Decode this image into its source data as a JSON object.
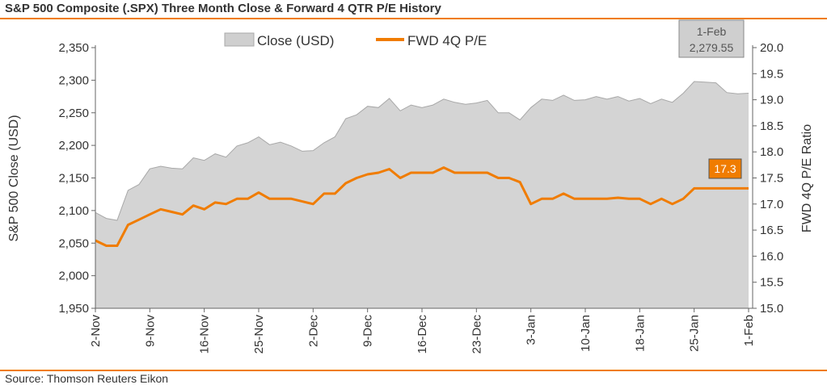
{
  "title": "S&P 500 Composite (.SPX) Three Month Close & Forward 4 QTR P/E History",
  "source": "Source: Thomson Reuters Eikon",
  "chart_data": {
    "type": "area+line",
    "x_tick_labels": [
      "2-Nov",
      "9-Nov",
      "16-Nov",
      "25-Nov",
      "2-Dec",
      "9-Dec",
      "16-Dec",
      "23-Dec",
      "3-Jan",
      "10-Jan",
      "18-Jan",
      "25-Jan",
      "1-Feb"
    ],
    "x_tick_index": [
      0,
      5,
      10,
      15,
      20,
      25,
      30,
      35,
      40,
      45,
      50,
      55,
      60
    ],
    "y_left": {
      "label": "S&P 500 Close (USD)",
      "min": 1950,
      "max": 2350,
      "ticks": [
        1950,
        2000,
        2050,
        2100,
        2150,
        2200,
        2250,
        2300,
        2350
      ],
      "tick_labels": [
        "1,950",
        "2,000",
        "2,050",
        "2,100",
        "2,150",
        "2,200",
        "2,250",
        "2,300",
        "2,350"
      ]
    },
    "y_right": {
      "label": "FWD 4Q P/E Ratio",
      "min": 15.0,
      "max": 20.0,
      "ticks": [
        15,
        15.5,
        16,
        16.5,
        17,
        17.5,
        18,
        18.5,
        19,
        19.5,
        20
      ],
      "tick_labels": [
        "15.0",
        "15.5",
        "16.0",
        "16.5",
        "17.0",
        "17.5",
        "18.0",
        "18.5",
        "19.0",
        "19.5",
        "20.0"
      ]
    },
    "series": [
      {
        "name": "Close (USD)",
        "kind": "area",
        "axis": "left",
        "color": "#d4d4d4",
        "values": [
          2097,
          2088,
          2085,
          2131,
          2140,
          2164,
          2168,
          2165,
          2164,
          2181,
          2177,
          2187,
          2182,
          2199,
          2204,
          2213,
          2201,
          2205,
          2199,
          2191,
          2192,
          2204,
          2213,
          2241,
          2247,
          2260,
          2258,
          2272,
          2253,
          2262,
          2258,
          2262,
          2271,
          2266,
          2263,
          2265,
          2269,
          2250,
          2250,
          2239,
          2258,
          2271,
          2269,
          2277,
          2269,
          2270,
          2275,
          2271,
          2275,
          2268,
          2272,
          2264,
          2271,
          2266,
          2280,
          2298,
          2297,
          2296,
          2281,
          2279,
          2280
        ]
      },
      {
        "name": "FWD 4Q P/E",
        "kind": "line",
        "axis": "right",
        "color": "#f07c00",
        "values": [
          16.3,
          16.2,
          16.2,
          16.6,
          16.7,
          16.8,
          16.9,
          16.85,
          16.8,
          16.97,
          16.9,
          17.03,
          17.0,
          17.1,
          17.1,
          17.22,
          17.1,
          17.1,
          17.1,
          17.05,
          17.0,
          17.2,
          17.2,
          17.4,
          17.5,
          17.57,
          17.6,
          17.67,
          17.5,
          17.6,
          17.6,
          17.6,
          17.7,
          17.6,
          17.6,
          17.6,
          17.6,
          17.5,
          17.5,
          17.42,
          17.0,
          17.1,
          17.1,
          17.2,
          17.1,
          17.1,
          17.1,
          17.1,
          17.12,
          17.1,
          17.1,
          17.0,
          17.1,
          17.0,
          17.1,
          17.3,
          17.3,
          17.3,
          17.3,
          17.3,
          17.3
        ]
      }
    ],
    "legend": {
      "position": "top",
      "items": [
        "Close (USD)",
        "FWD 4Q P/E"
      ]
    },
    "annotations": [
      {
        "series": "Close (USD)",
        "date": "1-Feb",
        "value": "2,279.55",
        "fill": "#cfcfcf"
      },
      {
        "series": "FWD 4Q P/E",
        "value": "17.3",
        "fill": "#f07c00"
      }
    ],
    "colors": {
      "accent": "#f07c00",
      "area": "#d4d4d4",
      "area_edge": "#a8a8a8"
    }
  }
}
